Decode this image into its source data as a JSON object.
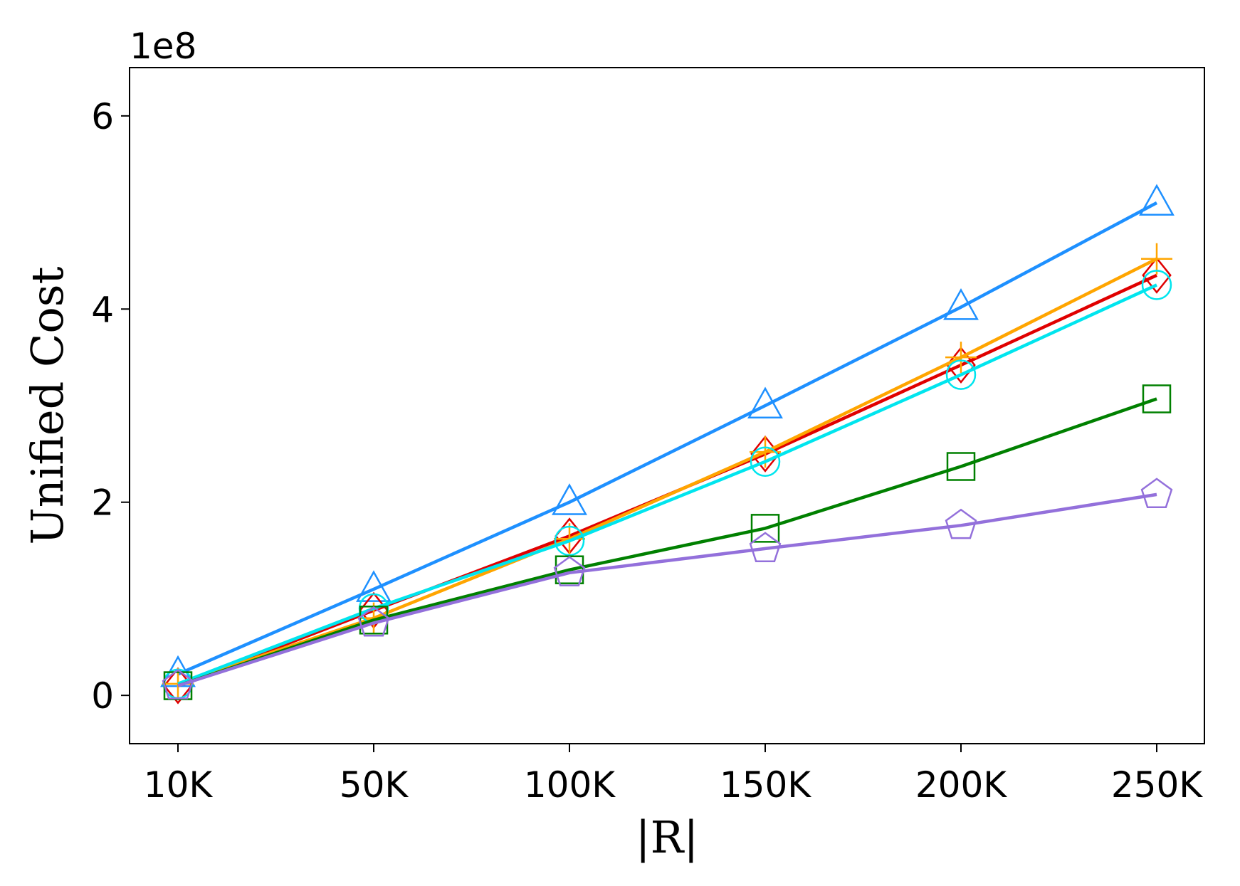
{
  "chart_data": {
    "type": "line",
    "xlabel": "|R|",
    "ylabel": "Unified Cost",
    "y_offset_label": "1e8",
    "categories": [
      "10K",
      "50K",
      "100K",
      "150K",
      "200K",
      "250K"
    ],
    "y_ticks": [
      0,
      2,
      4,
      6
    ],
    "ylim": [
      -0.5,
      6.5
    ],
    "y_unit_scale": 100000000.0,
    "grid": false,
    "series": [
      {
        "color": "#1e90ff",
        "marker": "triangle",
        "values": [
          0.22,
          1.1,
          2.0,
          3.0,
          4.02,
          5.1
        ]
      },
      {
        "color": "#e00000",
        "marker": "diamond",
        "values": [
          0.1,
          0.88,
          1.65,
          2.5,
          3.42,
          4.35
        ]
      },
      {
        "color": "#ffa500",
        "marker": "plus",
        "values": [
          0.12,
          0.8,
          1.62,
          2.52,
          3.5,
          4.52
        ]
      },
      {
        "color": "#00e5ee",
        "marker": "circle",
        "values": [
          0.12,
          0.9,
          1.6,
          2.42,
          3.32,
          4.25
        ]
      },
      {
        "color": "#008000",
        "marker": "square",
        "values": [
          0.1,
          0.78,
          1.3,
          1.73,
          2.37,
          3.07
        ]
      },
      {
        "color": "#9370db",
        "marker": "pentagon",
        "values": [
          0.1,
          0.75,
          1.27,
          1.52,
          1.76,
          2.08
        ]
      }
    ]
  }
}
